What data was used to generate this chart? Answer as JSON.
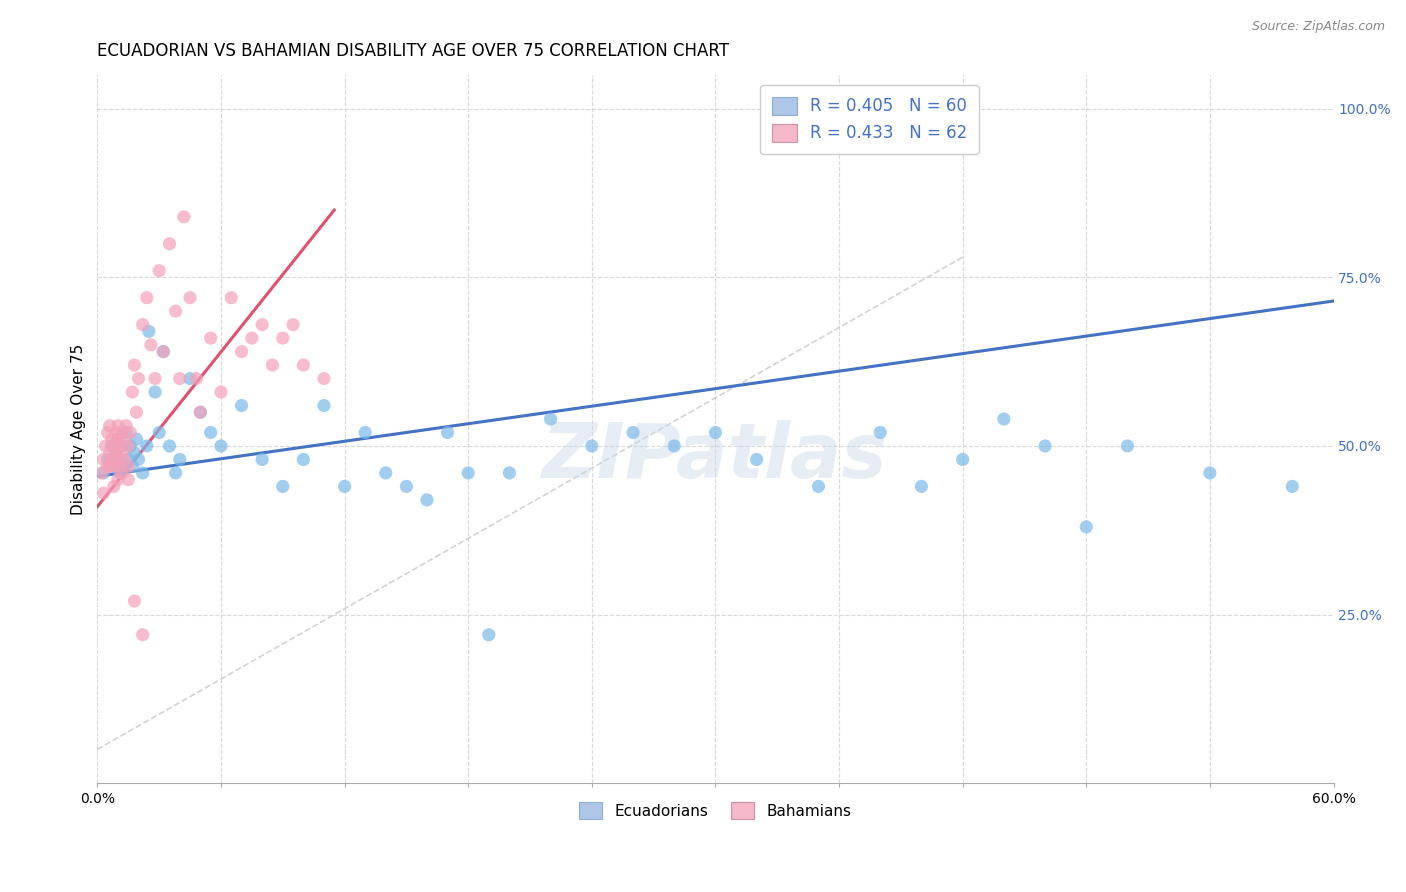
{
  "title": "ECUADORIAN VS BAHAMIAN DISABILITY AGE OVER 75 CORRELATION CHART",
  "source": "Source: ZipAtlas.com",
  "ylabel": "Disability Age Over 75",
  "watermark": "ZIPatlas",
  "x_min": 0.0,
  "x_max": 0.6,
  "y_min": 0.0,
  "y_max": 1.05,
  "x_ticks": [
    0.0,
    0.06,
    0.12,
    0.18,
    0.24,
    0.3,
    0.36,
    0.42,
    0.48,
    0.54,
    0.6
  ],
  "y_ticks_right": [
    0.25,
    0.5,
    0.75,
    1.0
  ],
  "y_ticklabels_right": [
    "25.0%",
    "50.0%",
    "75.0%",
    "100.0%"
  ],
  "legend_blue_label": "R = 0.405   N = 60",
  "legend_pink_label": "R = 0.433   N = 62",
  "legend_blue_color": "#aec6e8",
  "legend_pink_color": "#f4b8c8",
  "blue_color": "#7ab8e8",
  "pink_color": "#f4a0b8",
  "trendline_blue": "#4472c4",
  "trendline_pink": "#e05070",
  "trendline_gray": "#c8c8c8",
  "grid_color": "#d8d8d8",
  "title_color": "#000000",
  "source_color": "#888888",
  "axis_label_color": "#000000",
  "tick_color_right": "#4472c4",
  "watermark_color": "#c8d8ea",
  "blue_x": [
    0.003,
    0.005,
    0.007,
    0.008,
    0.009,
    0.01,
    0.01,
    0.011,
    0.012,
    0.013,
    0.014,
    0.015,
    0.016,
    0.017,
    0.018,
    0.019,
    0.02,
    0.022,
    0.024,
    0.025,
    0.028,
    0.03,
    0.032,
    0.035,
    0.038,
    0.04,
    0.045,
    0.05,
    0.055,
    0.06,
    0.07,
    0.08,
    0.09,
    0.1,
    0.11,
    0.12,
    0.13,
    0.14,
    0.15,
    0.16,
    0.17,
    0.18,
    0.19,
    0.2,
    0.22,
    0.24,
    0.26,
    0.28,
    0.3,
    0.32,
    0.35,
    0.38,
    0.4,
    0.42,
    0.44,
    0.46,
    0.48,
    0.5,
    0.54,
    0.58
  ],
  "blue_y": [
    0.46,
    0.48,
    0.5,
    0.47,
    0.49,
    0.51,
    0.48,
    0.46,
    0.5,
    0.47,
    0.52,
    0.48,
    0.5,
    0.47,
    0.49,
    0.51,
    0.48,
    0.46,
    0.5,
    0.67,
    0.58,
    0.52,
    0.64,
    0.5,
    0.46,
    0.48,
    0.6,
    0.55,
    0.52,
    0.5,
    0.56,
    0.48,
    0.44,
    0.48,
    0.56,
    0.44,
    0.52,
    0.46,
    0.44,
    0.42,
    0.52,
    0.46,
    0.22,
    0.46,
    0.54,
    0.5,
    0.52,
    0.5,
    0.52,
    0.48,
    0.44,
    0.52,
    0.44,
    0.48,
    0.54,
    0.5,
    0.38,
    0.5,
    0.46,
    0.44
  ],
  "pink_x": [
    0.002,
    0.003,
    0.004,
    0.005,
    0.005,
    0.006,
    0.006,
    0.007,
    0.007,
    0.008,
    0.008,
    0.009,
    0.009,
    0.01,
    0.01,
    0.01,
    0.011,
    0.011,
    0.012,
    0.012,
    0.013,
    0.013,
    0.014,
    0.015,
    0.015,
    0.016,
    0.017,
    0.018,
    0.019,
    0.02,
    0.022,
    0.024,
    0.026,
    0.028,
    0.03,
    0.032,
    0.035,
    0.038,
    0.04,
    0.042,
    0.045,
    0.048,
    0.05,
    0.055,
    0.06,
    0.065,
    0.07,
    0.075,
    0.08,
    0.085,
    0.09,
    0.095,
    0.1,
    0.11,
    0.003,
    0.006,
    0.008,
    0.01,
    0.012,
    0.015,
    0.018,
    0.022
  ],
  "pink_y": [
    0.46,
    0.48,
    0.5,
    0.47,
    0.52,
    0.49,
    0.53,
    0.51,
    0.48,
    0.5,
    0.47,
    0.52,
    0.49,
    0.51,
    0.48,
    0.53,
    0.5,
    0.47,
    0.52,
    0.49,
    0.51,
    0.48,
    0.53,
    0.5,
    0.47,
    0.52,
    0.58,
    0.62,
    0.55,
    0.6,
    0.68,
    0.72,
    0.65,
    0.6,
    0.76,
    0.64,
    0.8,
    0.7,
    0.6,
    0.84,
    0.72,
    0.6,
    0.55,
    0.66,
    0.58,
    0.72,
    0.64,
    0.66,
    0.68,
    0.62,
    0.66,
    0.68,
    0.62,
    0.6,
    0.43,
    0.47,
    0.44,
    0.45,
    0.46,
    0.45,
    0.27,
    0.22
  ],
  "blue_trend_x0": 0.0,
  "blue_trend_x1": 0.6,
  "blue_trend_y0": 0.455,
  "blue_trend_y1": 0.715,
  "pink_trend_x0": 0.0,
  "pink_trend_x1": 0.115,
  "pink_trend_y0": 0.41,
  "pink_trend_y1": 0.85,
  "gray_trend_x0": 0.0,
  "gray_trend_x1": 0.42,
  "gray_trend_y0": 0.05,
  "gray_trend_y1": 0.78,
  "bottom_legend_labels": [
    "Ecuadorians",
    "Bahamians"
  ],
  "bottom_legend_colors": [
    "#aec6e8",
    "#f4b8c8"
  ],
  "figsize": [
    14.06,
    8.92
  ],
  "dpi": 100
}
